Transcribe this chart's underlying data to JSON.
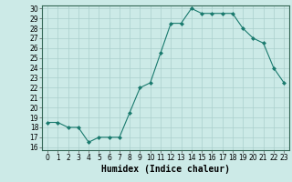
{
  "x": [
    0,
    1,
    2,
    3,
    4,
    5,
    6,
    7,
    8,
    9,
    10,
    11,
    12,
    13,
    14,
    15,
    16,
    17,
    18,
    19,
    20,
    21,
    22,
    23
  ],
  "y": [
    18.5,
    18.5,
    18.0,
    18.0,
    16.5,
    17.0,
    17.0,
    17.0,
    19.5,
    22.0,
    22.5,
    25.5,
    28.5,
    28.5,
    30.0,
    29.5,
    29.5,
    29.5,
    29.5,
    28.0,
    27.0,
    26.5,
    24.0,
    22.5
  ],
  "line_color": "#1a7a6e",
  "marker": "D",
  "marker_size": 2,
  "bg_color": "#cceae7",
  "grid_color": "#aacfcc",
  "xlabel": "Humidex (Indice chaleur)",
  "xlim": [
    -0.5,
    23.5
  ],
  "ylim": [
    15.7,
    30.3
  ],
  "yticks": [
    16,
    17,
    18,
    19,
    20,
    21,
    22,
    23,
    24,
    25,
    26,
    27,
    28,
    29,
    30
  ],
  "xticks": [
    0,
    1,
    2,
    3,
    4,
    5,
    6,
    7,
    8,
    9,
    10,
    11,
    12,
    13,
    14,
    15,
    16,
    17,
    18,
    19,
    20,
    21,
    22,
    23
  ],
  "tick_fontsize": 5.5,
  "label_fontsize": 7
}
